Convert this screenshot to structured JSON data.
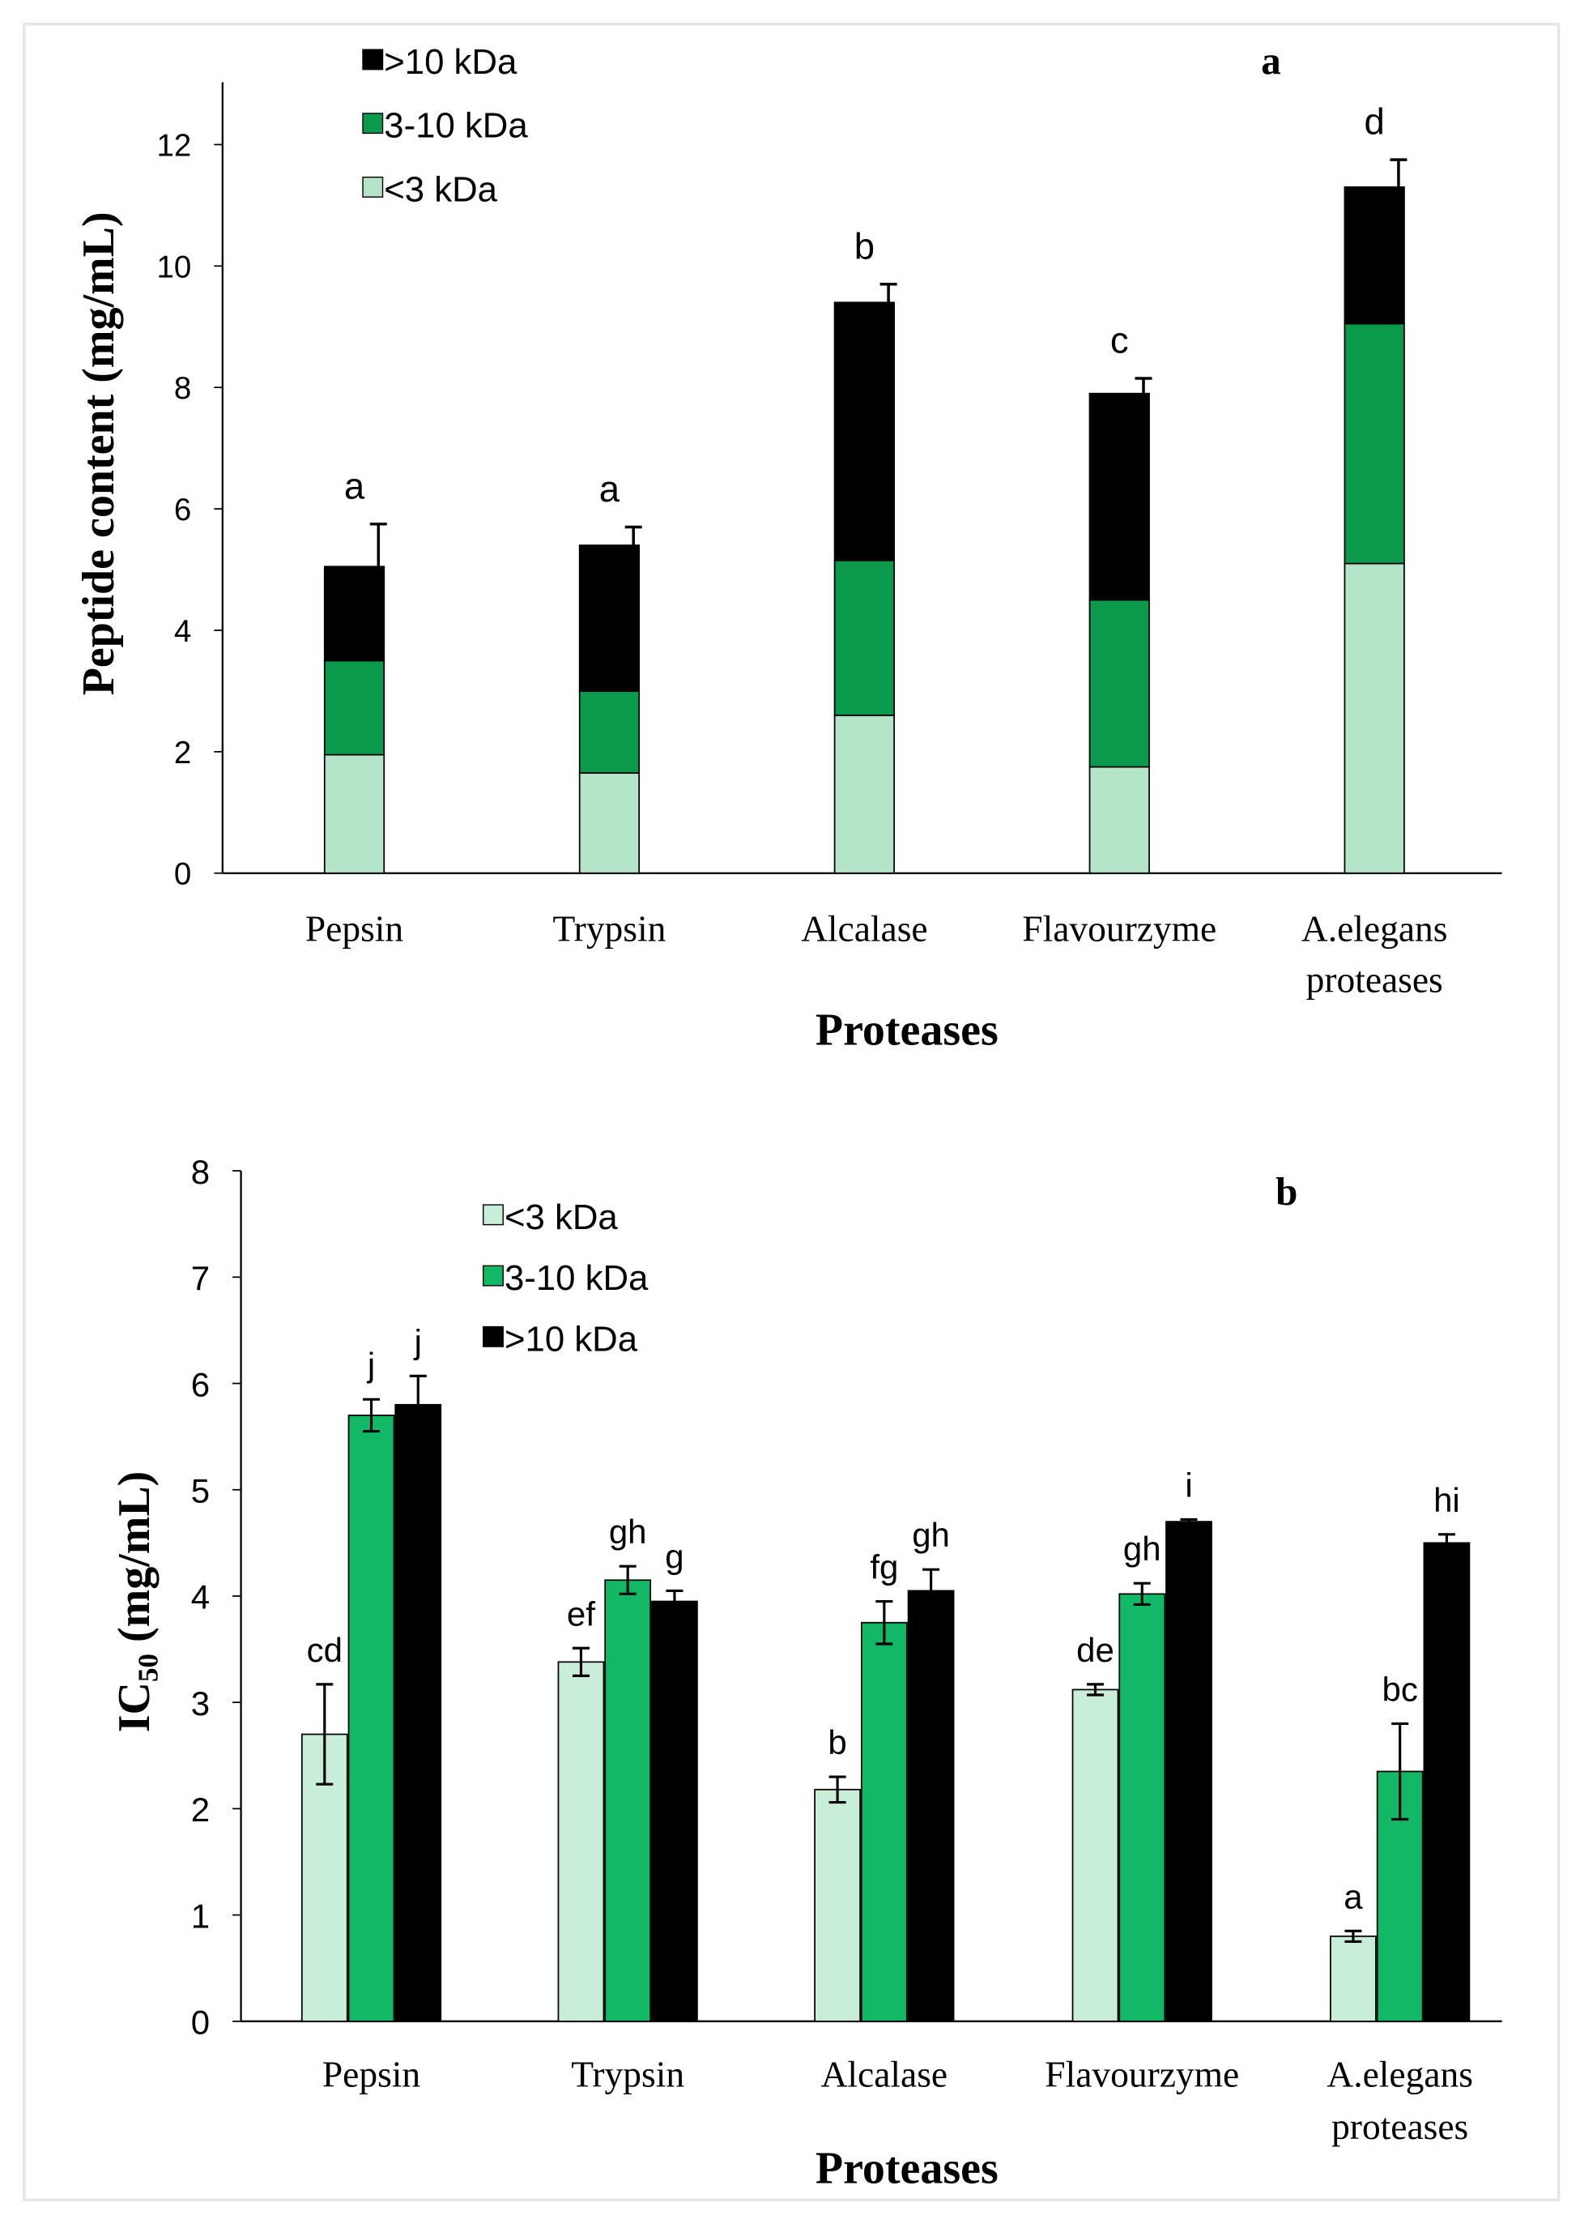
{
  "colors": {
    "light_a": "#b5e5c8",
    "green_a": "#0b9a4b",
    "light_b": "#c8eed7",
    "green_b": "#12b964",
    "black": "#000000"
  },
  "chart_data": [
    {
      "type": "bar",
      "stacked": true,
      "panel_label": "a",
      "xlabel": "Proteases",
      "ylabel": "Peptide content (mg/mL)",
      "ylim": [
        0,
        12
      ],
      "yticks": [
        "0",
        "2",
        "4",
        "6",
        "8",
        "10",
        "12"
      ],
      "categories": [
        [
          "Pepsin"
        ],
        [
          "Trypsin"
        ],
        [
          "Alcalase"
        ],
        [
          "Flavourzyme"
        ],
        [
          "A.elegans",
          "proteases"
        ]
      ],
      "legend": ">10 kDa|3-10 kDa|<3 kDa",
      "legend_items": [
        ">10 kDa",
        "3-10 kDa",
        "<3 kDa"
      ],
      "legend_position": "top-left",
      "series": [
        {
          "name": "<3 kDa",
          "values": [
            1.95,
            1.65,
            2.6,
            1.75,
            5.1
          ]
        },
        {
          "name": "3-10 kDa",
          "values": [
            1.55,
            1.35,
            2.55,
            2.75,
            3.95
          ]
        },
        {
          "name": ">10 kDa",
          "values": [
            1.55,
            2.4,
            4.25,
            3.4,
            2.25
          ]
        }
      ],
      "total_error": [
        0.7,
        0.3,
        0.3,
        0.25,
        0.45
      ],
      "significance_letters": [
        "a",
        "a",
        "b",
        "c",
        "d"
      ]
    },
    {
      "type": "bar",
      "stacked": false,
      "panel_label": "b",
      "xlabel": "Proteases",
      "ylabel_main": "IC",
      "ylabel_sub": "50",
      "ylabel_unit": " (mg/mL)",
      "ylim": [
        0,
        8
      ],
      "yticks": [
        "0",
        "1",
        "2",
        "3",
        "4",
        "5",
        "6",
        "7",
        "8"
      ],
      "categories": [
        [
          "Pepsin"
        ],
        [
          "Trypsin"
        ],
        [
          "Alcalase"
        ],
        [
          "Flavourzyme"
        ],
        [
          "A.elegans",
          "proteases"
        ]
      ],
      "legend_items": [
        "<3 kDa",
        "3-10 kDa",
        ">10 kDa"
      ],
      "legend_position": "top-left",
      "series": [
        {
          "name": "<3 kDa",
          "values": [
            2.7,
            3.38,
            2.18,
            3.12,
            0.8
          ],
          "errors": [
            0.47,
            0.13,
            0.12,
            0.05,
            0.05
          ],
          "letters": [
            "cd",
            "ef",
            "b",
            "de",
            "a"
          ]
        },
        {
          "name": "3-10 kDa",
          "values": [
            5.7,
            4.15,
            3.75,
            4.02,
            2.35
          ],
          "errors": [
            0.15,
            0.13,
            0.2,
            0.1,
            0.45
          ],
          "letters": [
            "j",
            "gh",
            "fg",
            "gh",
            "bc"
          ]
        },
        {
          "name": ">10 kDa",
          "values": [
            5.8,
            3.95,
            4.05,
            4.7,
            4.5
          ],
          "errors": [
            0.27,
            0.1,
            0.2,
            0.02,
            0.08
          ],
          "letters": [
            "j",
            "g",
            "gh",
            "i",
            "hi"
          ]
        }
      ]
    }
  ]
}
